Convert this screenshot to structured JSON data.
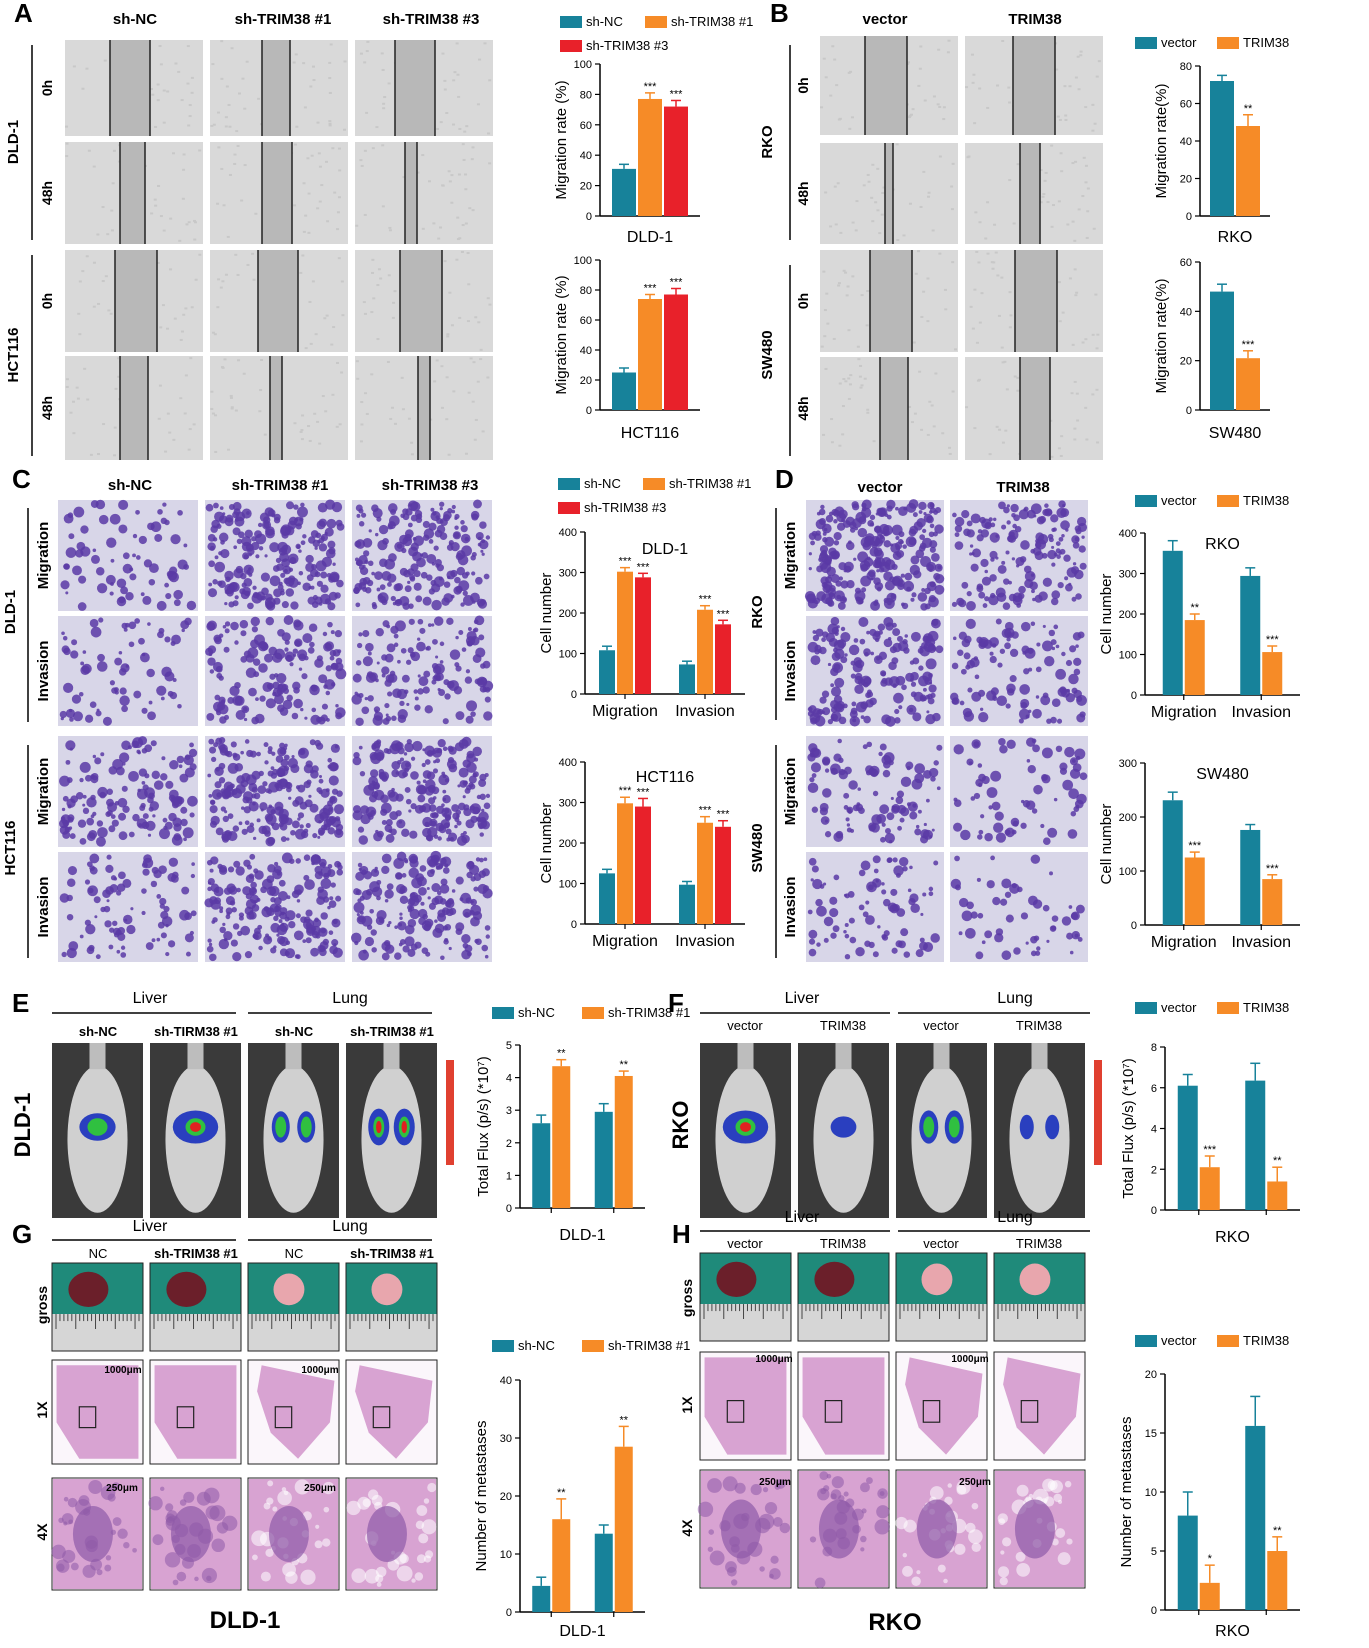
{
  "colors": {
    "teal": "#17829a",
    "orange": "#f68b27",
    "red": "#e8212a",
    "wound_bg": "#d9d9d9",
    "wound_gap": "#b8b8b8",
    "stain_bg": "#d8d6e8",
    "stain_cell": "#5b3aa6",
    "tissue_pink": "#d8a3d2",
    "tissue_dark": "#8e5aa8",
    "drape_green": "#1f8a7a"
  },
  "panels": {
    "A": {
      "letter": "A",
      "col_labels": [
        "sh-NC",
        "sh-TRIM38 #1",
        "sh-TRIM38 #3"
      ],
      "row_groups": [
        "DLD-1",
        "HCT116"
      ],
      "time_labels": [
        "0h",
        "48h",
        "0h",
        "48h"
      ]
    },
    "B": {
      "letter": "B",
      "col_labels": [
        "vector",
        "TRIM38"
      ],
      "row_groups": [
        "RKO",
        "SW480"
      ],
      "time_labels": [
        "0h",
        "48h",
        "0h",
        "48h"
      ]
    },
    "C": {
      "letter": "C",
      "col_labels": [
        "sh-NC",
        "sh-TRIM38 #1",
        "sh-TRIM38 #3"
      ],
      "row_groups": [
        "DLD-1",
        "HCT116"
      ],
      "assay_labels": [
        "Migration",
        "Invasion",
        "Migration",
        "Invasion"
      ]
    },
    "D": {
      "letter": "D",
      "col_labels": [
        "vector",
        "TRIM38"
      ],
      "row_groups": [
        "RKO",
        "SW480"
      ],
      "assay_labels": [
        "Migration",
        "Invasion",
        "Migration",
        "Invasion"
      ]
    },
    "E": {
      "letter": "E",
      "group_labels": [
        "Liver",
        "Lung"
      ],
      "col_labels": [
        "sh-NC",
        "sh-TIRM38 #1",
        "sh-NC",
        "sh-TRIM38 #1"
      ],
      "side_label": "DLD-1"
    },
    "F": {
      "letter": "F",
      "group_labels": [
        "Liver",
        "Lung"
      ],
      "col_labels": [
        "vector",
        "TRIM38",
        "vector",
        "TRIM38"
      ],
      "side_label": "RKO"
    },
    "G": {
      "letter": "G",
      "group_labels": [
        "Liver",
        "Lung"
      ],
      "col_labels": [
        "NC",
        "sh-TRIM38 #1",
        "NC",
        "sh-TRIM38 #1"
      ],
      "row_labels": [
        "gross",
        "1X",
        "4X"
      ],
      "scale_labels": [
        "1000μm",
        "1000μm",
        "250μm",
        "250μm"
      ],
      "bottom_label": "DLD-1"
    },
    "H": {
      "letter": "H",
      "group_labels": [
        "Liver",
        "Lung"
      ],
      "col_labels": [
        "vector",
        "TRIM38",
        "vector",
        "TRIM38"
      ],
      "row_labels": [
        "gross",
        "1X",
        "4X"
      ],
      "scale_labels": [
        "1000μm",
        "1000μm",
        "250μm",
        "250μm"
      ],
      "bottom_label": "RKO"
    }
  },
  "chart_data": [
    {
      "id": "A-DLD-1",
      "type": "bar",
      "categories": [
        ""
      ],
      "xlabel": "DLD-1",
      "ylabel": "Migration rate (%)",
      "ylim": [
        0,
        100
      ],
      "yticks": [
        0,
        20,
        40,
        60,
        80,
        100
      ],
      "series": [
        {
          "name": "sh-NC",
          "values": [
            31
          ]
        },
        {
          "name": "sh-TRIM38 #1",
          "values": [
            77
          ]
        },
        {
          "name": "sh-TRIM38 #3",
          "values": [
            72
          ]
        }
      ],
      "errors": [
        [
          3
        ],
        [
          4
        ],
        [
          4
        ]
      ],
      "annotations": [
        [
          ""
        ],
        [
          "***"
        ],
        [
          "***"
        ]
      ],
      "legend": "top"
    },
    {
      "id": "A-HCT116",
      "type": "bar",
      "categories": [
        ""
      ],
      "xlabel": "HCT116",
      "ylabel": "Migration rate (%)",
      "ylim": [
        0,
        100
      ],
      "yticks": [
        0,
        20,
        40,
        60,
        80,
        100
      ],
      "series": [
        {
          "name": "sh-NC",
          "values": [
            25
          ]
        },
        {
          "name": "sh-TRIM38 #1",
          "values": [
            74
          ]
        },
        {
          "name": "sh-TRIM38 #3",
          "values": [
            77
          ]
        }
      ],
      "errors": [
        [
          3
        ],
        [
          3
        ],
        [
          4
        ]
      ],
      "annotations": [
        [
          ""
        ],
        [
          "***"
        ],
        [
          "***"
        ]
      ]
    },
    {
      "id": "B-RKO",
      "type": "bar",
      "categories": [
        ""
      ],
      "xlabel": "RKO",
      "ylabel": "Migration rate(%)",
      "ylim": [
        0,
        80
      ],
      "yticks": [
        0,
        20,
        40,
        60,
        80
      ],
      "series": [
        {
          "name": "vector",
          "values": [
            72
          ]
        },
        {
          "name": "TRIM38",
          "values": [
            48
          ]
        }
      ],
      "errors": [
        [
          3
        ],
        [
          6
        ]
      ],
      "annotations": [
        [
          ""
        ],
        [
          "**"
        ]
      ],
      "legend": "top"
    },
    {
      "id": "B-SW480",
      "type": "bar",
      "categories": [
        ""
      ],
      "xlabel": "SW480",
      "ylabel": "Migration rate(%)",
      "ylim": [
        0,
        60
      ],
      "yticks": [
        0,
        20,
        40,
        60
      ],
      "series": [
        {
          "name": "vector",
          "values": [
            48
          ]
        },
        {
          "name": "TRIM38",
          "values": [
            21
          ]
        }
      ],
      "errors": [
        [
          3
        ],
        [
          3
        ]
      ],
      "annotations": [
        [
          ""
        ],
        [
          "***"
        ]
      ]
    },
    {
      "id": "C-DLD-1",
      "type": "bar",
      "title": "DLD-1",
      "categories": [
        "Migration",
        "Invasion"
      ],
      "ylabel": "Cell number",
      "ylim": [
        0,
        400
      ],
      "yticks": [
        0,
        100,
        200,
        300,
        400
      ],
      "series": [
        {
          "name": "sh-NC",
          "values": [
            108,
            73
          ]
        },
        {
          "name": "sh-TRIM38 #1",
          "values": [
            302,
            208
          ]
        },
        {
          "name": "sh-TRIM38 #3",
          "values": [
            288,
            172
          ]
        }
      ],
      "errors": [
        [
          10,
          8
        ],
        [
          10,
          10
        ],
        [
          10,
          10
        ]
      ],
      "annotations": [
        [
          "",
          ""
        ],
        [
          "***",
          "***"
        ],
        [
          "***",
          "***"
        ]
      ],
      "legend": "top"
    },
    {
      "id": "C-HCT116",
      "type": "bar",
      "title": "HCT116",
      "categories": [
        "Migration",
        "Invasion"
      ],
      "ylabel": "Cell number",
      "ylim": [
        0,
        400
      ],
      "yticks": [
        0,
        100,
        200,
        300,
        400
      ],
      "series": [
        {
          "name": "sh-NC",
          "values": [
            125,
            97
          ]
        },
        {
          "name": "sh-TRIM38 #1",
          "values": [
            298,
            250
          ]
        },
        {
          "name": "sh-TRIM38 #3",
          "values": [
            290,
            240
          ]
        }
      ],
      "errors": [
        [
          10,
          8
        ],
        [
          15,
          15
        ],
        [
          20,
          15
        ]
      ],
      "annotations": [
        [
          "",
          ""
        ],
        [
          "***",
          "***"
        ],
        [
          "***",
          "***"
        ]
      ]
    },
    {
      "id": "D-RKO",
      "type": "bar",
      "title": "RKO",
      "categories": [
        "Migration",
        "Invasion"
      ],
      "ylabel": "Cell number",
      "ylim": [
        0,
        400
      ],
      "yticks": [
        0,
        100,
        200,
        300,
        400
      ],
      "series": [
        {
          "name": "vector",
          "values": [
            356,
            294
          ]
        },
        {
          "name": "TRIM38",
          "values": [
            185,
            106
          ]
        }
      ],
      "errors": [
        [
          25,
          20
        ],
        [
          15,
          15
        ]
      ],
      "annotations": [
        [
          "",
          ""
        ],
        [
          "**",
          "***"
        ]
      ],
      "legend": "top"
    },
    {
      "id": "D-SW480",
      "type": "bar",
      "title": "SW480",
      "categories": [
        "Migration",
        "Invasion"
      ],
      "ylabel": "Cell number",
      "ylim": [
        0,
        300
      ],
      "yticks": [
        0,
        100,
        200,
        300
      ],
      "series": [
        {
          "name": "vector",
          "values": [
            231,
            176
          ]
        },
        {
          "name": "TRIM38",
          "values": [
            125,
            85
          ]
        }
      ],
      "errors": [
        [
          15,
          10
        ],
        [
          10,
          8
        ]
      ],
      "annotations": [
        [
          "",
          ""
        ],
        [
          "***",
          "***"
        ]
      ]
    },
    {
      "id": "E-DLD-1",
      "type": "bar",
      "categories": [
        "Liver",
        "Lung"
      ],
      "xlabel": "DLD-1",
      "ylabel": "Total Flux (p/s) (*10⁷)",
      "ylim": [
        0,
        5
      ],
      "yticks": [
        0,
        1,
        2,
        3,
        4,
        5
      ],
      "series": [
        {
          "name": "sh-NC",
          "values": [
            2.6,
            2.95
          ]
        },
        {
          "name": "sh-TRIM38 #1",
          "values": [
            4.35,
            4.05
          ]
        }
      ],
      "errors": [
        [
          0.25,
          0.25
        ],
        [
          0.2,
          0.15
        ]
      ],
      "annotations": [
        [
          "",
          ""
        ],
        [
          "**",
          "**"
        ]
      ],
      "legend": "top"
    },
    {
      "id": "F-RKO",
      "type": "bar",
      "categories": [
        "Liver",
        "Lung"
      ],
      "xlabel": "RKO",
      "ylabel": "Total Flux (p/s) (*10⁷)",
      "ylim": [
        0,
        8
      ],
      "yticks": [
        0,
        2,
        4,
        6,
        8
      ],
      "series": [
        {
          "name": "vector",
          "values": [
            6.1,
            6.35
          ]
        },
        {
          "name": "TRIM38",
          "values": [
            2.1,
            1.4
          ]
        }
      ],
      "errors": [
        [
          0.55,
          0.85
        ],
        [
          0.55,
          0.7
        ]
      ],
      "annotations": [
        [
          "",
          ""
        ],
        [
          "***",
          "**"
        ]
      ],
      "legend": "top"
    },
    {
      "id": "G-DLD-1",
      "type": "bar",
      "categories": [
        "Liver",
        "Lung"
      ],
      "xlabel": "DLD-1",
      "ylabel": "Number of metastases",
      "ylim": [
        0,
        40
      ],
      "yticks": [
        0,
        10,
        20,
        30,
        40
      ],
      "series": [
        {
          "name": "sh-NC",
          "values": [
            4.5,
            13.5
          ]
        },
        {
          "name": "sh-TRIM38 #1",
          "values": [
            16,
            28.5
          ]
        }
      ],
      "errors": [
        [
          1.5,
          1.5
        ],
        [
          3.5,
          3.5
        ]
      ],
      "annotations": [
        [
          "",
          ""
        ],
        [
          "**",
          "**"
        ]
      ],
      "legend": "top"
    },
    {
      "id": "H-RKO",
      "type": "bar",
      "categories": [
        "Liver",
        "Lung"
      ],
      "xlabel": "RKO",
      "ylabel": "Number of metastases",
      "ylim": [
        0,
        20
      ],
      "yticks": [
        0,
        5,
        10,
        15,
        20
      ],
      "series": [
        {
          "name": "vector",
          "values": [
            8,
            15.6
          ]
        },
        {
          "name": "TRIM38",
          "values": [
            2.3,
            5
          ]
        }
      ],
      "errors": [
        [
          2,
          2.5
        ],
        [
          1.5,
          1.2
        ]
      ],
      "annotations": [
        [
          "",
          ""
        ],
        [
          "*",
          "**"
        ]
      ],
      "legend": "top"
    }
  ]
}
